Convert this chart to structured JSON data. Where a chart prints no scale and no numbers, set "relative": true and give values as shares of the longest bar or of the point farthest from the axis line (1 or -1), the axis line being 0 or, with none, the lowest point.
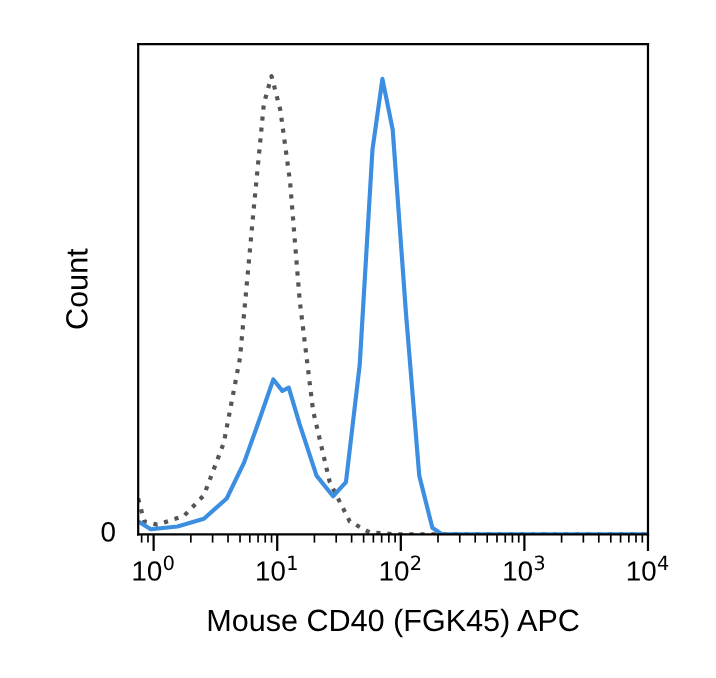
{
  "chart_data": {
    "type": "line",
    "relative": true,
    "xlabel": "Mouse CD40 (FGK45) APC",
    "ylabel": "Count",
    "log": "x",
    "xlim": [
      0.75,
      10000
    ],
    "xticks": [
      {
        "value": 1,
        "label": "10$^{0}$"
      },
      {
        "value": 10,
        "label": "10$^{1}$"
      },
      {
        "value": 100,
        "label": "10$^{2}$"
      },
      {
        "value": 1000,
        "label": "10$^{3}$"
      },
      {
        "value": 10000,
        "label": "10$^{4}$"
      }
    ],
    "grid": false,
    "legend": false,
    "marker": "none",
    "annotations": [
      "0"
    ],
    "series": [
      {
        "color": "#555555",
        "line_style": "dotted",
        "x": [
          0.75,
          0.84,
          1.07,
          1.76,
          2.55,
          3.7,
          5.0,
          6.4,
          7.8,
          9.0,
          10.6,
          12.7,
          15.2,
          19.5,
          26.6,
          38.6,
          56,
          91,
          10000
        ],
        "values": [
          0.078,
          0.028,
          0.021,
          0.04,
          0.085,
          0.2,
          0.385,
          0.7,
          0.94,
          1.0,
          0.926,
          0.77,
          0.51,
          0.27,
          0.114,
          0.028,
          0.004,
          0,
          0
        ]
      },
      {
        "color": "#3c8fe0",
        "line_style": "solid",
        "x": [
          0.75,
          0.95,
          1.56,
          2.55,
          3.9,
          5.4,
          7.3,
          9.3,
          11,
          12.4,
          15.2,
          20.8,
          28.3,
          36,
          46.5,
          59,
          71,
          86,
          110,
          141,
          180,
          215,
          10000
        ],
        "values": [
          0.028,
          0.011,
          0.017,
          0.034,
          0.078,
          0.157,
          0.256,
          0.338,
          0.313,
          0.32,
          0.24,
          0.128,
          0.083,
          0.114,
          0.37,
          0.84,
          0.994,
          0.883,
          0.484,
          0.128,
          0.014,
          0,
          0
        ]
      }
    ]
  }
}
